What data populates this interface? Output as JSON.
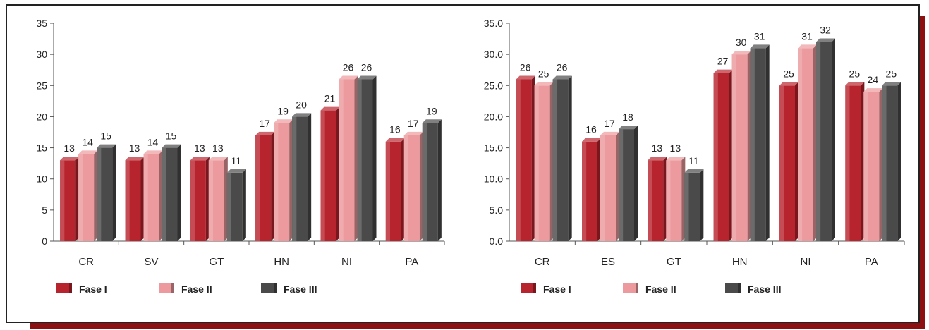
{
  "chart_data": [
    {
      "type": "bar",
      "categories": [
        "CR",
        "SV",
        "GT",
        "HN",
        "NI",
        "PA"
      ],
      "series": [
        {
          "name": "Fase I",
          "values": [
            13,
            13,
            13,
            17,
            21,
            16
          ]
        },
        {
          "name": "Fase II",
          "values": [
            14,
            14,
            13,
            19,
            26,
            17
          ]
        },
        {
          "name": "Fase III",
          "values": [
            15,
            15,
            11,
            20,
            26,
            19
          ]
        }
      ],
      "ylim": [
        0,
        35
      ],
      "yticks": [
        "0",
        "5",
        "10",
        "15",
        "20",
        "25",
        "30",
        "35"
      ],
      "legend_position": "bottom-left",
      "grid": false
    },
    {
      "type": "bar",
      "categories": [
        "CR",
        "ES",
        "GT",
        "HN",
        "NI",
        "PA"
      ],
      "series": [
        {
          "name": "Fase I",
          "values": [
            26,
            16,
            13,
            27,
            25,
            25
          ]
        },
        {
          "name": "Fase II",
          "values": [
            25,
            17,
            13,
            30,
            31,
            24
          ]
        },
        {
          "name": "Fase III",
          "values": [
            26,
            18,
            11,
            31,
            32,
            25
          ]
        }
      ],
      "ylim": [
        0,
        35
      ],
      "yticks": [
        "0.0",
        "5.0",
        "10.0",
        "15.0",
        "20.0",
        "25.0",
        "30.0",
        "35.0"
      ],
      "legend_position": "bottom-left",
      "grid": false
    }
  ],
  "colors": {
    "fase1": "#b8242e",
    "fase2": "#ec9a9d",
    "fase3": "#4a4a4a",
    "frame_shadow": "#8c0f12"
  }
}
